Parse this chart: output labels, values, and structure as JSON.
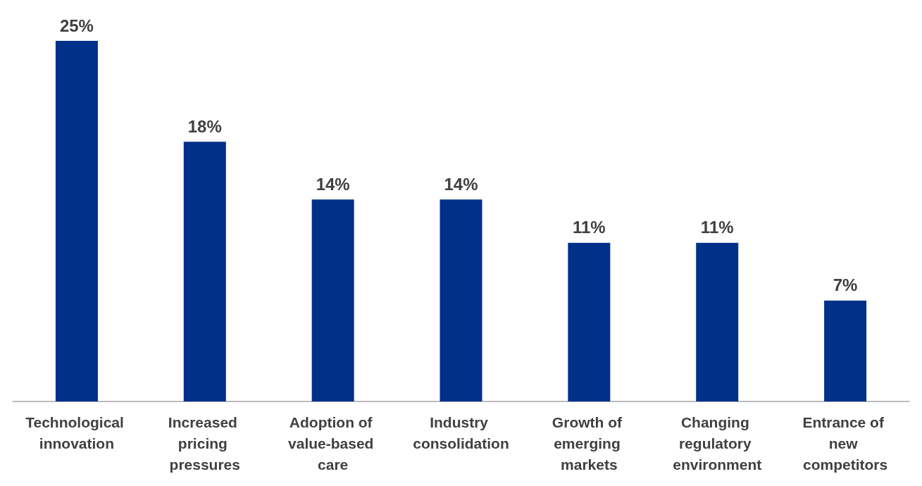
{
  "chart_data": {
    "type": "bar",
    "categories": [
      "Technological innovation",
      "Increased pricing pressures",
      "Adoption of value-based care",
      "Industry consolidation",
      "Growth of emerging markets",
      "Changing regulatory environment",
      "Entrance of new competitors"
    ],
    "values": [
      25,
      18,
      14,
      14,
      11,
      11,
      7
    ],
    "value_labels": [
      "25%",
      "18%",
      "14%",
      "14%",
      "11%",
      "11%",
      "7%"
    ],
    "color": "#003087",
    "grid": false
  }
}
